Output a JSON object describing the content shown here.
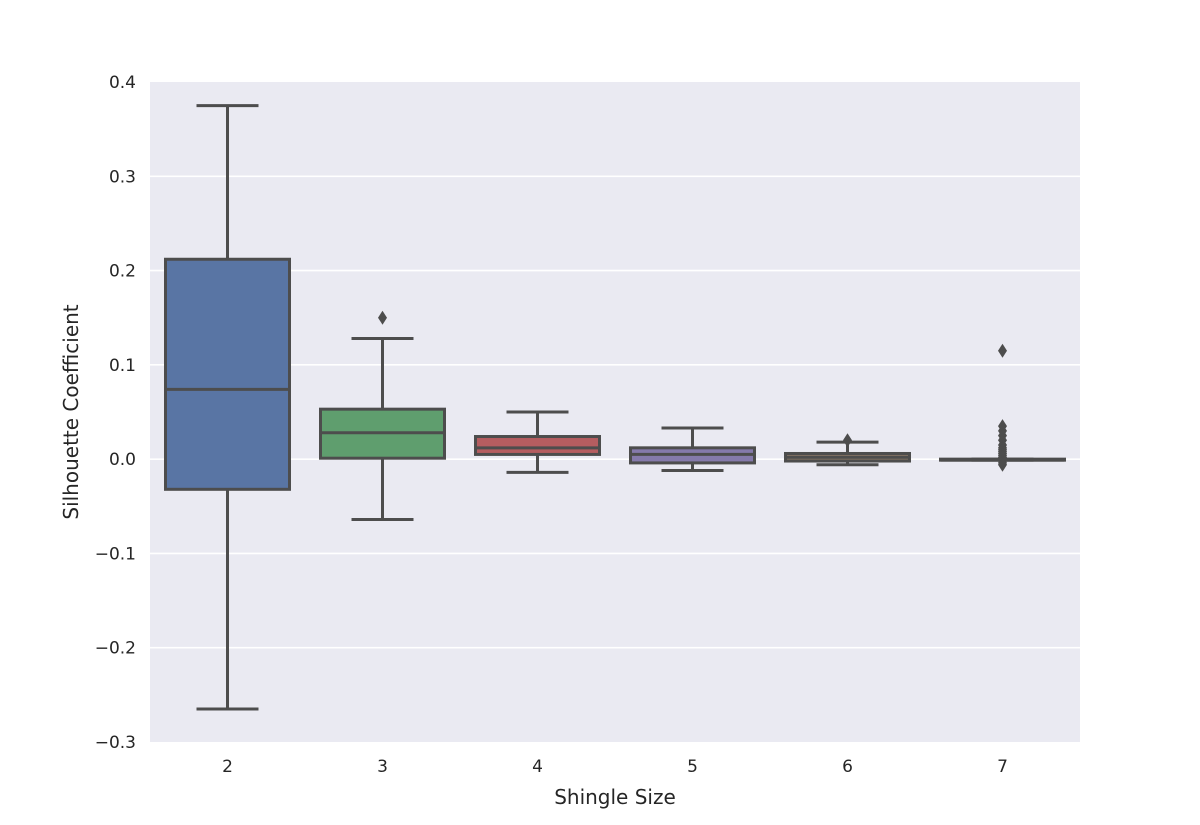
{
  "chart_data": {
    "type": "boxplot",
    "xlabel": "Shingle Size",
    "ylabel": "Silhouette Coefficient",
    "ylim": [
      -0.3,
      0.4
    ],
    "yticks": [
      -0.3,
      -0.2,
      -0.1,
      0.0,
      0.1,
      0.2,
      0.3,
      0.4
    ],
    "ytick_labels": [
      "−0.3",
      "−0.2",
      "−0.1",
      "0.0",
      "0.1",
      "0.2",
      "0.3",
      "0.4"
    ],
    "grid": true,
    "legend": "none",
    "categories": [
      "2",
      "3",
      "4",
      "5",
      "6",
      "7"
    ],
    "boxes": [
      {
        "category": "2",
        "whisker_low": -0.265,
        "q1": -0.032,
        "median": 0.074,
        "q3": 0.212,
        "whisker_high": 0.375,
        "fliers": [],
        "color": "#5975a4"
      },
      {
        "category": "3",
        "whisker_low": -0.064,
        "q1": 0.001,
        "median": 0.028,
        "q3": 0.053,
        "whisker_high": 0.128,
        "fliers": [
          0.15
        ],
        "color": "#5f9e6e"
      },
      {
        "category": "4",
        "whisker_low": -0.014,
        "q1": 0.005,
        "median": 0.012,
        "q3": 0.024,
        "whisker_high": 0.05,
        "fliers": [],
        "color": "#b55d60"
      },
      {
        "category": "5",
        "whisker_low": -0.012,
        "q1": -0.004,
        "median": 0.005,
        "q3": 0.012,
        "whisker_high": 0.033,
        "fliers": [],
        "color": "#857aab"
      },
      {
        "category": "6",
        "whisker_low": -0.006,
        "q1": -0.002,
        "median": 0.002,
        "q3": 0.006,
        "whisker_high": 0.018,
        "fliers": [
          0.02
        ],
        "color": "#8d7866"
      },
      {
        "category": "7",
        "whisker_low": -0.001,
        "q1": -0.001,
        "median": -0.001,
        "q3": 0.0,
        "whisker_high": 0.0,
        "fliers": [
          0.115,
          0.035,
          0.03,
          0.025,
          0.02,
          0.015,
          0.012,
          0.01,
          0.008,
          0.006,
          0.004,
          0.002,
          -0.002,
          -0.004,
          -0.006
        ],
        "color": "#d0bbff"
      }
    ]
  }
}
